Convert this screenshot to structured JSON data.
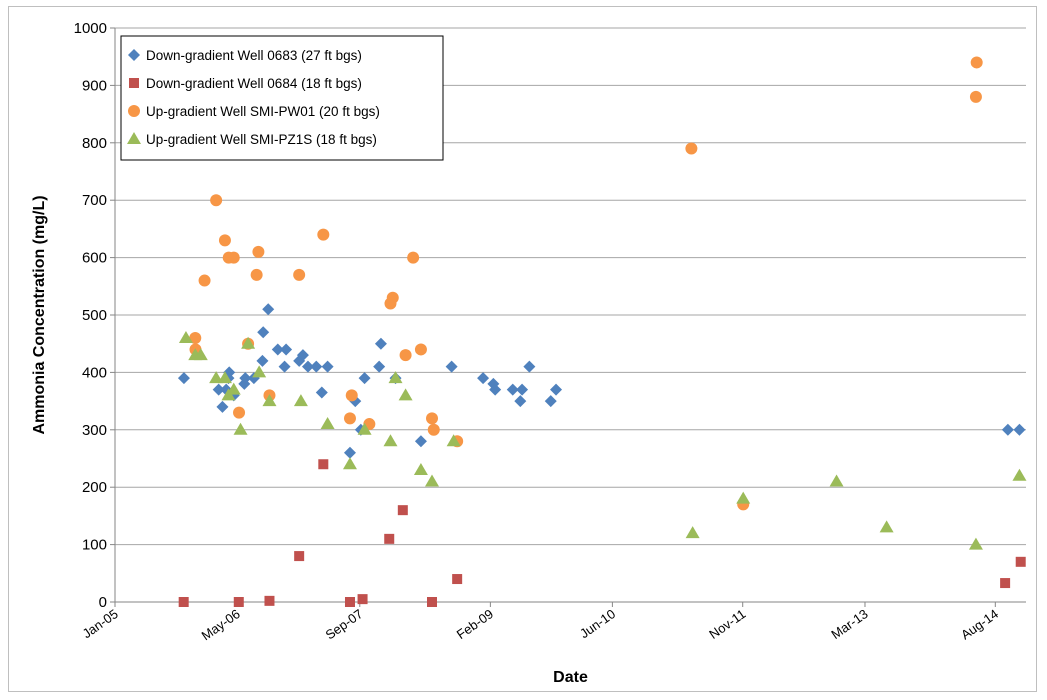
{
  "chart_data": {
    "type": "scatter",
    "title": "",
    "xlabel": "Date",
    "ylabel": "Ammonia Concentration (mg/L)",
    "ylim": [
      0,
      1000
    ],
    "yticks": [
      0,
      100,
      200,
      300,
      400,
      500,
      600,
      700,
      800,
      900,
      1000
    ],
    "xlim": [
      "2005-01-01",
      "2014-12-01"
    ],
    "xticks": [
      {
        "date": "2005-01-01",
        "label": "Jan-05"
      },
      {
        "date": "2006-05-01",
        "label": "May-06"
      },
      {
        "date": "2007-09-01",
        "label": "Sep-07"
      },
      {
        "date": "2009-02-01",
        "label": "Feb-09"
      },
      {
        "date": "2010-06-01",
        "label": "Jun-10"
      },
      {
        "date": "2011-11-01",
        "label": "Nov-11"
      },
      {
        "date": "2013-03-01",
        "label": "Mar-13"
      },
      {
        "date": "2014-08-01",
        "label": "Aug-14"
      }
    ],
    "grid": "horizontal",
    "legend_position": "top-left",
    "series": [
      {
        "name": "Down-gradient Well 0683 (27 ft bgs)",
        "marker": "diamond",
        "color": "#4F81BD",
        "points": [
          [
            "2005-10-02",
            390
          ],
          [
            "2006-02-17",
            370
          ],
          [
            "2006-03-04",
            340
          ],
          [
            "2006-03-19",
            370
          ],
          [
            "2006-03-28",
            390
          ],
          [
            "2006-03-31",
            400
          ],
          [
            "2006-04-18",
            360
          ],
          [
            "2006-05-30",
            380
          ],
          [
            "2006-06-03",
            390
          ],
          [
            "2006-07-07",
            390
          ],
          [
            "2006-08-10",
            420
          ],
          [
            "2006-08-13",
            470
          ],
          [
            "2006-09-02",
            510
          ],
          [
            "2006-10-10",
            440
          ],
          [
            "2006-11-06",
            410
          ],
          [
            "2006-11-12",
            440
          ],
          [
            "2007-01-03",
            420
          ],
          [
            "2007-01-18",
            430
          ],
          [
            "2007-02-07",
            410
          ],
          [
            "2007-03-12",
            410
          ],
          [
            "2007-04-03",
            365
          ],
          [
            "2007-04-26",
            410
          ],
          [
            "2007-07-24",
            260
          ],
          [
            "2007-08-14",
            350
          ],
          [
            "2007-09-05",
            300
          ],
          [
            "2007-09-20",
            390
          ],
          [
            "2007-11-17",
            410
          ],
          [
            "2007-11-24",
            450
          ],
          [
            "2008-01-21",
            390
          ],
          [
            "2008-05-01",
            280
          ],
          [
            "2008-08-31",
            410
          ],
          [
            "2009-01-03",
            390
          ],
          [
            "2009-02-13",
            380
          ],
          [
            "2009-02-20",
            370
          ],
          [
            "2009-05-01",
            370
          ],
          [
            "2009-05-31",
            350
          ],
          [
            "2009-06-07",
            370
          ],
          [
            "2009-07-06",
            410
          ],
          [
            "2009-09-29",
            350
          ],
          [
            "2009-10-20",
            370
          ],
          [
            "2014-09-20",
            300
          ],
          [
            "2014-11-05",
            300
          ]
        ]
      },
      {
        "name": "Down-gradient Well 0684 (18 ft bgs)",
        "marker": "square",
        "color": "#C0504D",
        "points": [
          [
            "2005-10-01",
            0
          ],
          [
            "2006-05-08",
            0
          ],
          [
            "2006-09-07",
            2
          ],
          [
            "2007-01-03",
            80
          ],
          [
            "2007-04-09",
            240
          ],
          [
            "2007-07-24",
            0
          ],
          [
            "2007-09-12",
            5
          ],
          [
            "2007-12-27",
            110
          ],
          [
            "2008-02-19",
            160
          ],
          [
            "2008-06-14",
            0
          ],
          [
            "2008-09-22",
            40
          ],
          [
            "2014-09-09",
            33
          ],
          [
            "2014-11-10",
            70
          ]
        ]
      },
      {
        "name": "Up-gradient Well SMI-PW01 (20 ft bgs)",
        "marker": "circle",
        "color": "#F79646",
        "points": [
          [
            "2005-11-16",
            460
          ],
          [
            "2005-11-17",
            440
          ],
          [
            "2005-12-23",
            560
          ],
          [
            "2006-02-07",
            700
          ],
          [
            "2006-03-14",
            630
          ],
          [
            "2006-03-29",
            600
          ],
          [
            "2006-04-18",
            600
          ],
          [
            "2006-05-09",
            330
          ],
          [
            "2006-06-14",
            450
          ],
          [
            "2006-07-18",
            570
          ],
          [
            "2006-07-25",
            610
          ],
          [
            "2006-09-07",
            360
          ],
          [
            "2007-01-03",
            570
          ],
          [
            "2007-04-09",
            640
          ],
          [
            "2007-07-24",
            320
          ],
          [
            "2007-07-31",
            360
          ],
          [
            "2007-10-09",
            310
          ],
          [
            "2008-01-01",
            520
          ],
          [
            "2008-01-10",
            530
          ],
          [
            "2008-03-01",
            430
          ],
          [
            "2008-03-31",
            600
          ],
          [
            "2008-05-01",
            440
          ],
          [
            "2008-06-14",
            320
          ],
          [
            "2008-06-21",
            300
          ],
          [
            "2008-09-22",
            280
          ],
          [
            "2011-04-11",
            790
          ],
          [
            "2011-11-03",
            170
          ],
          [
            "2014-05-16",
            880
          ],
          [
            "2014-05-19",
            940
          ]
        ]
      },
      {
        "name": "Up-gradient Well SMI-PZ1S (18 ft bgs)",
        "marker": "triangle",
        "color": "#9BBB59",
        "points": [
          [
            "2005-10-10",
            460
          ],
          [
            "2005-11-16",
            430
          ],
          [
            "2005-12-08",
            430
          ],
          [
            "2006-02-07",
            390
          ],
          [
            "2006-03-14",
            390
          ],
          [
            "2006-03-28",
            360
          ],
          [
            "2006-04-18",
            370
          ],
          [
            "2006-05-15",
            300
          ],
          [
            "2006-06-14",
            450
          ],
          [
            "2006-07-28",
            400
          ],
          [
            "2006-09-07",
            350
          ],
          [
            "2007-01-10",
            350
          ],
          [
            "2007-04-26",
            310
          ],
          [
            "2007-07-24",
            240
          ],
          [
            "2007-09-20",
            300
          ],
          [
            "2008-01-01",
            280
          ],
          [
            "2008-01-21",
            390
          ],
          [
            "2008-03-01",
            360
          ],
          [
            "2008-05-01",
            230
          ],
          [
            "2008-06-14",
            210
          ],
          [
            "2008-09-08",
            280
          ],
          [
            "2011-04-16",
            120
          ],
          [
            "2011-11-03",
            180
          ],
          [
            "2012-11-08",
            210
          ],
          [
            "2013-05-26",
            130
          ],
          [
            "2014-05-16",
            100
          ],
          [
            "2014-11-05",
            220
          ]
        ]
      }
    ]
  }
}
